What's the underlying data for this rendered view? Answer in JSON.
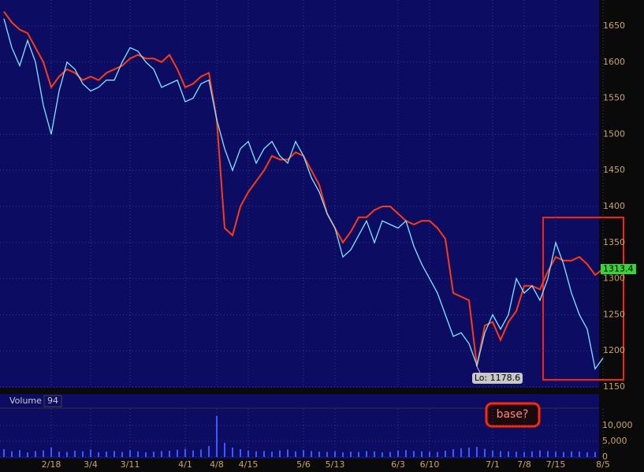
{
  "chart_data": [
    {
      "type": "line",
      "categories": [
        null,
        null,
        null,
        null,
        null,
        null,
        "2/18",
        null,
        null,
        null,
        null,
        "3/4",
        null,
        null,
        null,
        null,
        "3/11",
        null,
        null,
        null,
        null,
        null,
        null,
        "4/1",
        null,
        null,
        null,
        "4/8",
        null,
        null,
        null,
        "4/15",
        null,
        null,
        null,
        null,
        null,
        null,
        "5/6",
        null,
        null,
        null,
        "5/13",
        null,
        null,
        null,
        null,
        null,
        null,
        null,
        "6/3",
        null,
        null,
        null,
        "6/10",
        null,
        null,
        null,
        null,
        null,
        null,
        null,
        "7/1",
        null,
        null,
        null,
        "7/8",
        null,
        null,
        null,
        "7/15",
        null,
        null,
        null,
        null,
        null,
        "8/5"
      ],
      "series": [
        {
          "color": "#ff3a10",
          "values": [
            1670,
            1655,
            1645,
            1640,
            1620,
            1600,
            1565,
            1580,
            1590,
            1585,
            1575,
            1580,
            1575,
            1585,
            1590,
            1595,
            1605,
            1610,
            1605,
            1605,
            1600,
            1610,
            1590,
            1565,
            1570,
            1580,
            1585,
            1520,
            1370,
            1360,
            1400,
            1420,
            1435,
            1450,
            1470,
            1465,
            1465,
            1475,
            1470,
            1450,
            1430,
            1390,
            1370,
            1350,
            1365,
            1385,
            1385,
            1395,
            1400,
            1400,
            1390,
            1380,
            1375,
            1380,
            1380,
            1370,
            1355,
            1280,
            1275,
            1270,
            1178.6,
            1235,
            1240,
            1215,
            1240,
            1255,
            1290,
            1290,
            1285,
            1310,
            1330,
            1325,
            1325,
            1330,
            1320,
            1305,
            1313.4
          ]
        },
        {
          "color": "#7fe8ff",
          "values": [
            1660,
            1620,
            1595,
            1630,
            1600,
            1540,
            1500,
            1560,
            1600,
            1590,
            1570,
            1560,
            1565,
            1575,
            1575,
            1600,
            1620,
            1615,
            1600,
            1590,
            1565,
            1570,
            1575,
            1545,
            1550,
            1570,
            1575,
            1520,
            1480,
            1450,
            1480,
            1490,
            1460,
            1480,
            1490,
            1470,
            1460,
            1490,
            1470,
            1440,
            1420,
            1390,
            1370,
            1330,
            1340,
            1360,
            1380,
            1350,
            1380,
            1375,
            1370,
            1380,
            1345,
            1320,
            1300,
            1280,
            1250,
            1220,
            1225,
            1210,
            1180,
            1225,
            1250,
            1230,
            1250,
            1300,
            1280,
            1290,
            1270,
            1300,
            1350,
            1320,
            1280,
            1250,
            1230,
            1175,
            1190
          ]
        }
      ],
      "ylim": [
        1150,
        1686
      ],
      "yticks": [
        1150,
        1200,
        1250,
        1300,
        1350,
        1400,
        1450,
        1500,
        1550,
        1600,
        1650
      ],
      "grid": true,
      "annotations": [
        "Lo: 1178.6"
      ]
    },
    {
      "type": "bar",
      "title": "Volume",
      "color": "#3a5cff",
      "values": [
        2500,
        1800,
        2200,
        1500,
        1900,
        2100,
        3000,
        1700,
        1600,
        2000,
        1800,
        2400,
        1500,
        1700,
        1900,
        1600,
        2200,
        1800,
        1500,
        1700,
        1900,
        2000,
        2300,
        2600,
        2100,
        2400,
        3500,
        13000,
        4500,
        3000,
        2500,
        2000,
        1800,
        1900,
        1700,
        2100,
        2400,
        1800,
        2200,
        1900,
        1700,
        1600,
        1800,
        1500,
        1700,
        1600,
        1900,
        1800,
        1500,
        1600,
        2000,
        2200,
        1900,
        1800,
        1700,
        1600,
        2000,
        2500,
        2800,
        3000,
        3200,
        2600,
        2000,
        1900,
        1800,
        1700,
        1600,
        1800,
        2100,
        1900,
        1700,
        1600,
        1800,
        1700,
        1500,
        1600,
        94
      ],
      "ylim": [
        0,
        19500
      ],
      "yticks": [
        0,
        {
          "value": 5000,
          "label": "5,000"
        },
        {
          "value": 10000,
          "label": "10,000"
        }
      ],
      "grid": true,
      "annotation": "base?"
    }
  ]
}
